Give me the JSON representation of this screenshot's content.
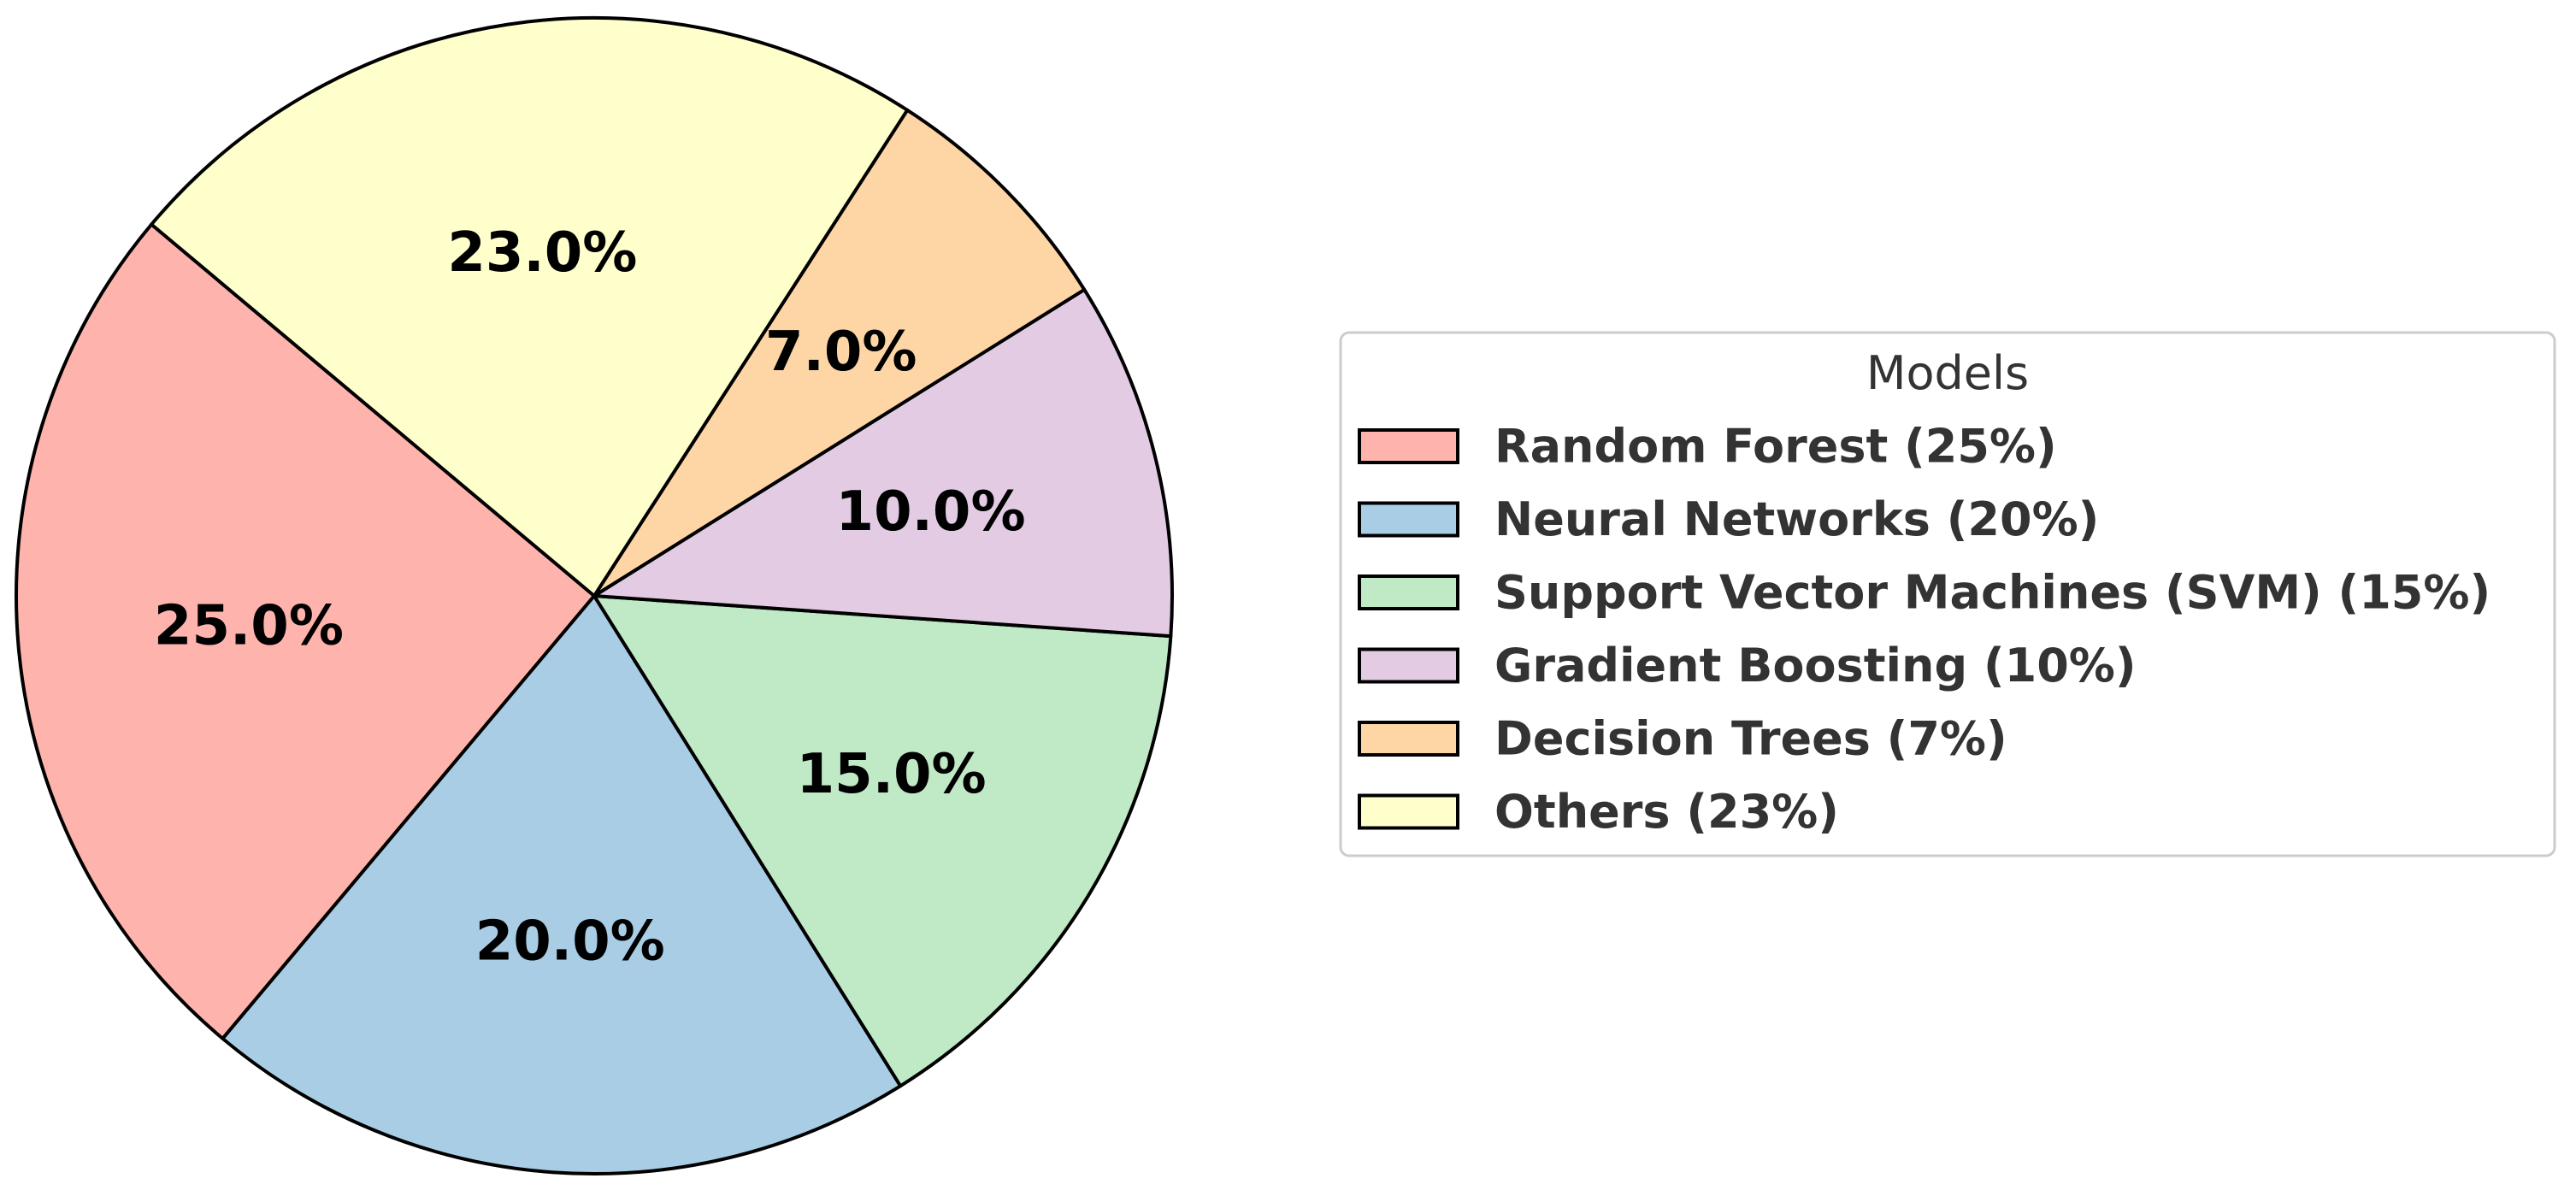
{
  "chart_data": {
    "type": "pie",
    "title": "",
    "legend": {
      "title": "Models",
      "placement": "right"
    },
    "slices": [
      {
        "label": "Random Forest (25%)",
        "value": 25,
        "pct_label": "25.0%",
        "color": "#ffb3ad"
      },
      {
        "label": "Neural Networks (20%)",
        "value": 20,
        "pct_label": "20.0%",
        "color": "#a8cde5"
      },
      {
        "label": "Support Vector Machines (SVM) (15%)",
        "value": 15,
        "pct_label": "15.0%",
        "color": "#c0e9c6"
      },
      {
        "label": "Gradient Boosting (10%)",
        "value": 10,
        "pct_label": "10.0%",
        "color": "#e3cbe4"
      },
      {
        "label": "Decision Trees (7%)",
        "value": 7,
        "pct_label": "7.0%",
        "color": "#fed6a6"
      },
      {
        "label": "Others (23%)",
        "value": 23,
        "pct_label": "23.0%",
        "color": "#ffffcc"
      }
    ],
    "start_angle_deg": 140,
    "counterclockwise": true
  }
}
